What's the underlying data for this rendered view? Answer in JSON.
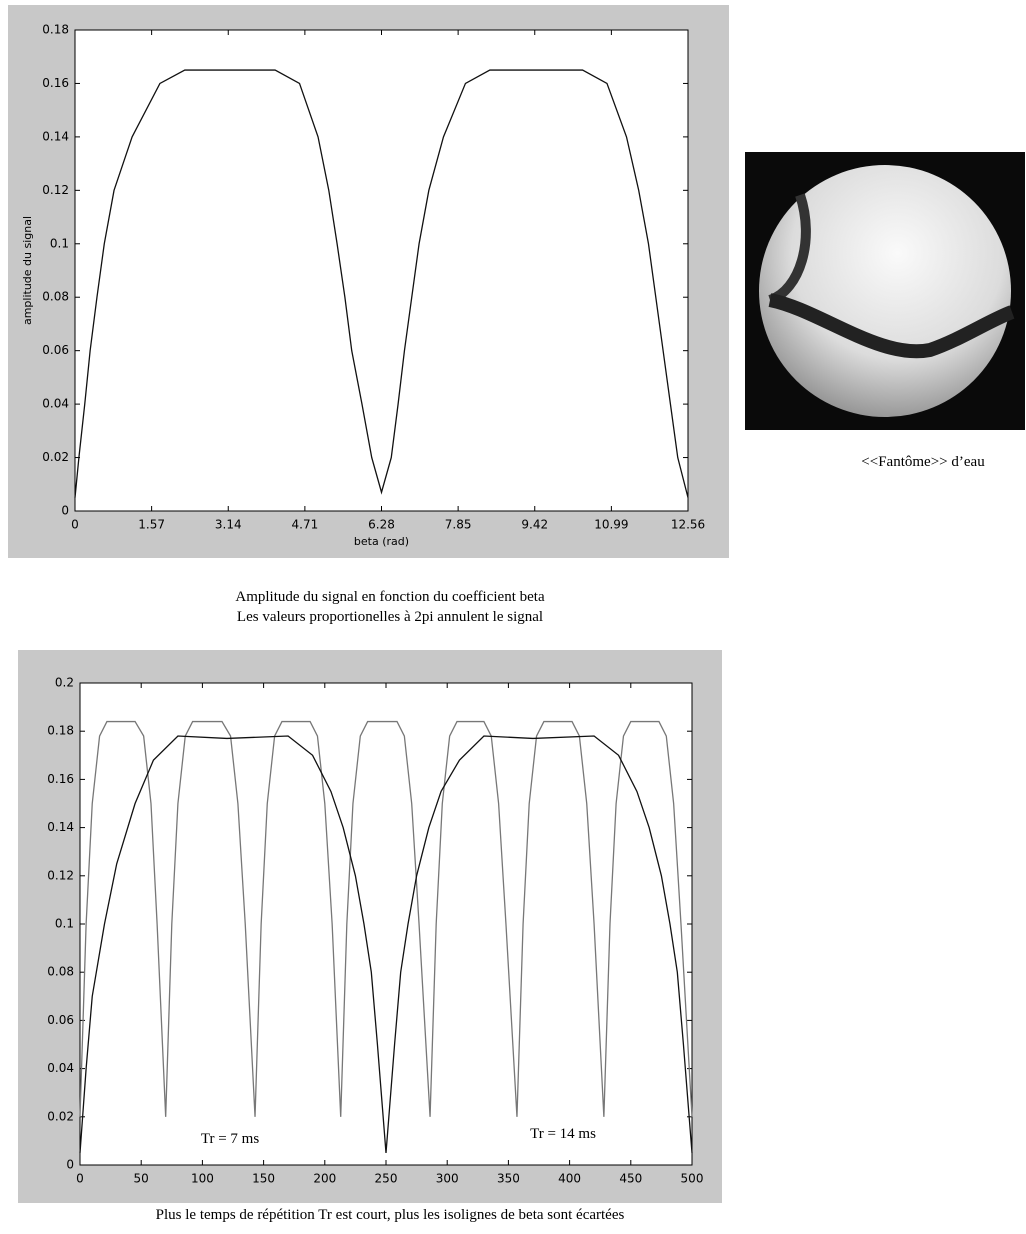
{
  "chart_data": [
    {
      "type": "line",
      "xlabel": "beta (rad)",
      "ylabel": "amplitude du signal",
      "caption": [
        "Amplitude du signal en fonction du coefficient beta",
        "Les valeurs proportionelles à 2pi annulent le signal"
      ],
      "xlim": [
        0,
        12.56
      ],
      "ylim": [
        0,
        0.18
      ],
      "xticks": [
        0,
        1.57,
        3.14,
        4.71,
        6.28,
        7.85,
        9.42,
        10.99,
        12.56
      ],
      "yticks": [
        0,
        0.02,
        0.04,
        0.06,
        0.08,
        0.1,
        0.12,
        0.14,
        0.16,
        0.18
      ],
      "series": [
        {
          "color": "#111111",
          "x": [
            0,
            0.08,
            0.2,
            0.31,
            0.45,
            0.6,
            0.8,
            1.17,
            1.74,
            2.25,
            3.14,
            4.1,
            4.6,
            4.98,
            5.2,
            5.37,
            5.53,
            5.67,
            5.88,
            6.08,
            6.28,
            6.48,
            6.62,
            6.75,
            6.9,
            7.05,
            7.25,
            7.55,
            8.0,
            8.5,
            9.42,
            10.4,
            10.9,
            11.3,
            11.55,
            11.75,
            11.9,
            12.05,
            12.2,
            12.35,
            12.56
          ],
          "values": [
            0.005,
            0.02,
            0.04,
            0.06,
            0.08,
            0.1,
            0.12,
            0.14,
            0.16,
            0.165,
            0.165,
            0.165,
            0.16,
            0.14,
            0.12,
            0.1,
            0.08,
            0.06,
            0.04,
            0.02,
            0.007,
            0.02,
            0.04,
            0.06,
            0.08,
            0.1,
            0.12,
            0.14,
            0.16,
            0.165,
            0.165,
            0.165,
            0.16,
            0.14,
            0.12,
            0.1,
            0.08,
            0.06,
            0.04,
            0.02,
            0.005
          ]
        }
      ]
    },
    {
      "type": "line",
      "caption": [
        "Plus le temps de répétition Tr est court, plus les isolignes de beta sont écartées"
      ],
      "annotations": [
        "Tr = 7 ms",
        "Tr = 14 ms"
      ],
      "xlim": [
        0,
        500
      ],
      "ylim": [
        0,
        0.2
      ],
      "xticks": [
        0,
        50,
        100,
        150,
        200,
        250,
        300,
        350,
        400,
        450,
        500
      ],
      "yticks": [
        0,
        0.02,
        0.04,
        0.06,
        0.08,
        0.1,
        0.12,
        0.14,
        0.16,
        0.18,
        0.2
      ],
      "series": [
        {
          "color": "#777777",
          "x": [
            0,
            5,
            10,
            16,
            22,
            45,
            52,
            58,
            63,
            70,
            75,
            80,
            86,
            92,
            116,
            123,
            129,
            135,
            143,
            148,
            153,
            159,
            165,
            188,
            194,
            200,
            206,
            213,
            218,
            223,
            229,
            235,
            259,
            265,
            271,
            277,
            286,
            291,
            296,
            302,
            308,
            330,
            336,
            342,
            348,
            357,
            362,
            367,
            373,
            379,
            402,
            408,
            414,
            420,
            428,
            433,
            438,
            444,
            450,
            473,
            479,
            485,
            491,
            500
          ],
          "values": [
            0.02,
            0.1,
            0.15,
            0.178,
            0.184,
            0.184,
            0.178,
            0.15,
            0.1,
            0.02,
            0.1,
            0.15,
            0.178,
            0.184,
            0.184,
            0.178,
            0.15,
            0.1,
            0.02,
            0.1,
            0.15,
            0.178,
            0.184,
            0.184,
            0.178,
            0.15,
            0.1,
            0.02,
            0.1,
            0.15,
            0.178,
            0.184,
            0.184,
            0.178,
            0.15,
            0.1,
            0.02,
            0.1,
            0.15,
            0.178,
            0.184,
            0.184,
            0.178,
            0.15,
            0.1,
            0.02,
            0.1,
            0.15,
            0.178,
            0.184,
            0.184,
            0.178,
            0.15,
            0.1,
            0.02,
            0.1,
            0.15,
            0.178,
            0.184,
            0.184,
            0.178,
            0.15,
            0.1,
            0.02
          ]
        },
        {
          "color": "#111111",
          "x": [
            0,
            5,
            10,
            20,
            30,
            45,
            60,
            80,
            120,
            170,
            190,
            205,
            215,
            225,
            232,
            238,
            243,
            250,
            257,
            262,
            268,
            275,
            285,
            295,
            310,
            330,
            370,
            420,
            440,
            455,
            465,
            475,
            482,
            488,
            493,
            500
          ],
          "values": [
            0.005,
            0.04,
            0.07,
            0.1,
            0.125,
            0.15,
            0.168,
            0.178,
            0.177,
            0.178,
            0.17,
            0.155,
            0.14,
            0.12,
            0.1,
            0.08,
            0.05,
            0.005,
            0.05,
            0.08,
            0.1,
            0.12,
            0.14,
            0.155,
            0.168,
            0.178,
            0.177,
            0.178,
            0.17,
            0.155,
            0.14,
            0.12,
            0.1,
            0.08,
            0.05,
            0.005
          ]
        }
      ]
    }
  ],
  "figure": {
    "caption": "<<Fantôme>> d’eau"
  }
}
